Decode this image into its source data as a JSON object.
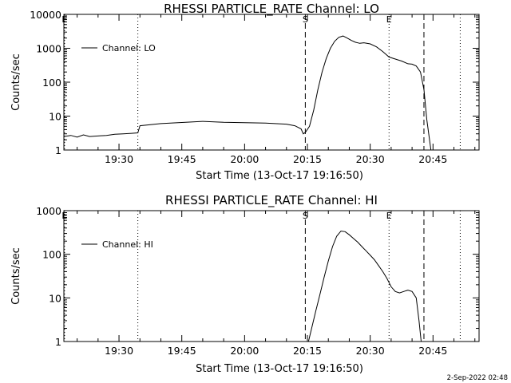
{
  "timestamp": "2-Sep-2022 02:48",
  "chart_data": [
    {
      "type": "line",
      "title": "RHESSI PARTICLE_RATE Channel: LO",
      "xlabel": "Start Time (13-Oct-17 19:16:50)",
      "ylabel": "Counts/sec",
      "scale_y": "log",
      "xlim": [
        "19:16:50",
        "20:56:00"
      ],
      "ylim": [
        1,
        10000
      ],
      "x_ticks": [
        "19:30",
        "19:45",
        "20:00",
        "20:15",
        "20:30",
        "20:45"
      ],
      "y_ticks": [
        "1",
        "10",
        "100",
        "1000",
        "10000"
      ],
      "legend": {
        "position": "top-left",
        "entries": [
          "Channel: LO"
        ]
      },
      "markers": [
        {
          "time": "19:17:00",
          "label": "E",
          "style": "dotted"
        },
        {
          "time": "19:34:30",
          "label": "",
          "style": "dotted"
        },
        {
          "time": "20:14:30",
          "label": "S",
          "style": "dashed"
        },
        {
          "time": "20:34:30",
          "label": "E",
          "style": "dotted"
        },
        {
          "time": "20:42:50",
          "label": "",
          "style": "dashed"
        },
        {
          "time": "20:51:30",
          "label": "",
          "style": "dotted"
        }
      ],
      "series": [
        {
          "name": "Channel: LO",
          "x": [
            "19:16:50",
            "19:18:30",
            "19:20:00",
            "19:21:30",
            "19:23:00",
            "19:25:00",
            "19:27:00",
            "19:29:00",
            "19:31:00",
            "19:33:00",
            "19:34:30",
            "19:35:00",
            "19:40:00",
            "19:45:00",
            "19:50:00",
            "19:55:00",
            "20:00:00",
            "20:05:00",
            "20:10:00",
            "20:12:00",
            "20:13:30",
            "20:14:00",
            "20:14:30",
            "20:15:30",
            "20:16:30",
            "20:17:30",
            "20:18:30",
            "20:19:30",
            "20:20:30",
            "20:21:30",
            "20:22:30",
            "20:23:30",
            "20:24:30",
            "20:25:30",
            "20:26:30",
            "20:27:30",
            "20:28:30",
            "20:30:00",
            "20:31:30",
            "20:33:00",
            "20:34:30",
            "20:36:00",
            "20:37:30",
            "20:39:00",
            "20:40:00",
            "20:41:00",
            "20:42:00",
            "20:42:50",
            "20:43:30",
            "20:44:30",
            "20:45:30",
            "20:46:30",
            "20:47:30",
            "20:48:30"
          ],
          "y": [
            2.5,
            2.7,
            2.4,
            2.8,
            2.5,
            2.6,
            2.7,
            2.9,
            3.0,
            3.1,
            3.2,
            5.2,
            6.0,
            6.5,
            7.0,
            6.6,
            6.4,
            6.2,
            5.8,
            5.2,
            4.2,
            3.0,
            3.3,
            5.0,
            15,
            60,
            200,
            500,
            1000,
            1600,
            2100,
            2300,
            2000,
            1700,
            1500,
            1400,
            1450,
            1350,
            1100,
            800,
            550,
            480,
            420,
            350,
            340,
            300,
            200,
            60,
            8,
            1,
            1,
            1,
            1,
            1
          ]
        }
      ]
    },
    {
      "type": "line",
      "title": "RHESSI PARTICLE_RATE Channel: HI",
      "xlabel": "Start Time (13-Oct-17 19:16:50)",
      "ylabel": "Counts/sec",
      "scale_y": "log",
      "xlim": [
        "19:16:50",
        "20:56:00"
      ],
      "ylim": [
        1,
        1000
      ],
      "x_ticks": [
        "19:30",
        "19:45",
        "20:00",
        "20:15",
        "20:30",
        "20:45"
      ],
      "y_ticks": [
        "1",
        "10",
        "100",
        "1000"
      ],
      "legend": {
        "position": "top-left",
        "entries": [
          "Channel: HI"
        ]
      },
      "markers": [
        {
          "time": "19:17:00",
          "label": "E",
          "style": "dotted"
        },
        {
          "time": "19:34:30",
          "label": "",
          "style": "dotted"
        },
        {
          "time": "20:14:30",
          "label": "S",
          "style": "dashed"
        },
        {
          "time": "20:34:30",
          "label": "E",
          "style": "dotted"
        },
        {
          "time": "20:42:50",
          "label": "",
          "style": "dashed"
        },
        {
          "time": "20:51:30",
          "label": "",
          "style": "dotted"
        }
      ],
      "series": [
        {
          "name": "Channel: HI",
          "x": [
            "20:15:15",
            "20:16:00",
            "20:17:00",
            "20:18:00",
            "20:19:00",
            "20:20:00",
            "20:21:00",
            "20:22:00",
            "20:23:00",
            "20:24:00",
            "20:25:00",
            "20:26:00",
            "20:27:00",
            "20:28:00",
            "20:29:00",
            "20:30:00",
            "20:31:00",
            "20:32:00",
            "20:33:00",
            "20:34:00",
            "20:35:00",
            "20:36:00",
            "20:37:00",
            "20:38:00",
            "20:39:00",
            "20:40:00",
            "20:41:00",
            "20:41:40",
            "20:42:10"
          ],
          "y": [
            1,
            2,
            5,
            12,
            30,
            70,
            150,
            260,
            340,
            330,
            280,
            230,
            190,
            150,
            120,
            95,
            75,
            55,
            40,
            28,
            18,
            14,
            13,
            14,
            15,
            14,
            10,
            3,
            1
          ]
        }
      ]
    }
  ]
}
